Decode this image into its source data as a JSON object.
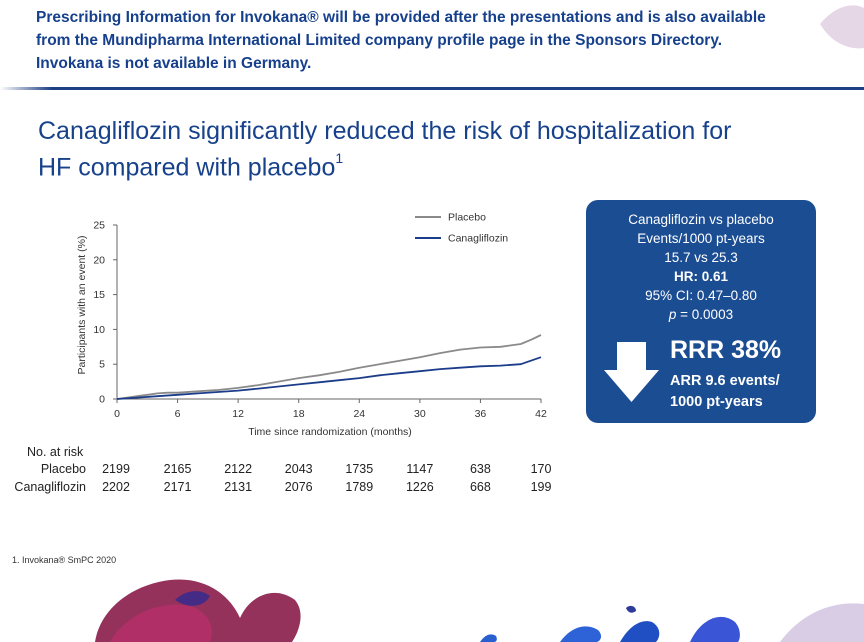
{
  "notice": {
    "line1": "Prescribing Information for Invokana® will be provided after the presentations and is also available",
    "line2": "from the Mundipharma International Limited company profile page in the Sponsors Directory.",
    "line3": "Invokana is not available in Germany."
  },
  "slide": {
    "title_line1": "Canagliflozin significantly reduced the risk of hospitalization for",
    "title_line2": "HF compared with placebo",
    "title_sup": "1"
  },
  "stats_box": {
    "line1": "Canagliflozin vs placebo",
    "line2": "Events/1000 pt-years",
    "line3": "15.7 vs 25.3",
    "line4": "HR: 0.61",
    "line5": "95% CI: 0.47–0.80",
    "line6_p": "p",
    "line6_rest": " = 0.0003",
    "rrr": "RRR 38%",
    "arr_line1": "ARR 9.6 events/",
    "arr_line2": "1000 pt-years"
  },
  "chart_data": {
    "type": "line",
    "xlabel": "Time since randomization (months)",
    "ylabel": "Participants with an event (%)",
    "xlim": [
      0,
      42
    ],
    "ylim": [
      0,
      25
    ],
    "x_ticks": [
      0,
      6,
      12,
      18,
      24,
      30,
      36,
      42
    ],
    "y_ticks": [
      0,
      5,
      10,
      15,
      20,
      25
    ],
    "legend_position": "top-right",
    "series": [
      {
        "name": "Placebo",
        "color": "#8a8a8a",
        "points": [
          [
            0,
            0
          ],
          [
            1,
            0.2
          ],
          [
            2,
            0.4
          ],
          [
            3,
            0.6
          ],
          [
            4,
            0.8
          ],
          [
            5,
            0.9
          ],
          [
            6,
            0.9
          ],
          [
            8,
            1.1
          ],
          [
            10,
            1.3
          ],
          [
            12,
            1.6
          ],
          [
            14,
            2.0
          ],
          [
            16,
            2.5
          ],
          [
            18,
            3.0
          ],
          [
            20,
            3.4
          ],
          [
            22,
            3.9
          ],
          [
            24,
            4.5
          ],
          [
            26,
            5.0
          ],
          [
            28,
            5.5
          ],
          [
            30,
            6.0
          ],
          [
            32,
            6.6
          ],
          [
            34,
            7.1
          ],
          [
            36,
            7.4
          ],
          [
            38,
            7.5
          ],
          [
            40,
            7.9
          ],
          [
            41,
            8.5
          ],
          [
            42,
            9.2
          ]
        ]
      },
      {
        "name": "Canagliflozin",
        "color": "#1b3c8a",
        "points": [
          [
            0,
            0
          ],
          [
            2,
            0.2
          ],
          [
            4,
            0.4
          ],
          [
            6,
            0.6
          ],
          [
            8,
            0.8
          ],
          [
            10,
            1.0
          ],
          [
            12,
            1.2
          ],
          [
            14,
            1.5
          ],
          [
            16,
            1.8
          ],
          [
            18,
            2.1
          ],
          [
            20,
            2.4
          ],
          [
            22,
            2.7
          ],
          [
            24,
            3.0
          ],
          [
            26,
            3.4
          ],
          [
            28,
            3.7
          ],
          [
            30,
            4.0
          ],
          [
            32,
            4.3
          ],
          [
            34,
            4.5
          ],
          [
            36,
            4.7
          ],
          [
            38,
            4.8
          ],
          [
            40,
            5.0
          ],
          [
            41,
            5.5
          ],
          [
            42,
            6.0
          ]
        ]
      }
    ]
  },
  "risk_table": {
    "header": "No. at risk",
    "rows": [
      {
        "label": "Placebo",
        "values": [
          "2199",
          "2165",
          "2122",
          "2043",
          "1735",
          "1147",
          "638",
          "170"
        ]
      },
      {
        "label": "Canagliflozin",
        "values": [
          "2202",
          "2171",
          "2131",
          "2076",
          "1789",
          "1226",
          "668",
          "199"
        ]
      }
    ]
  },
  "footnote": {
    "text": "1. Invokana® SmPC 2020"
  }
}
